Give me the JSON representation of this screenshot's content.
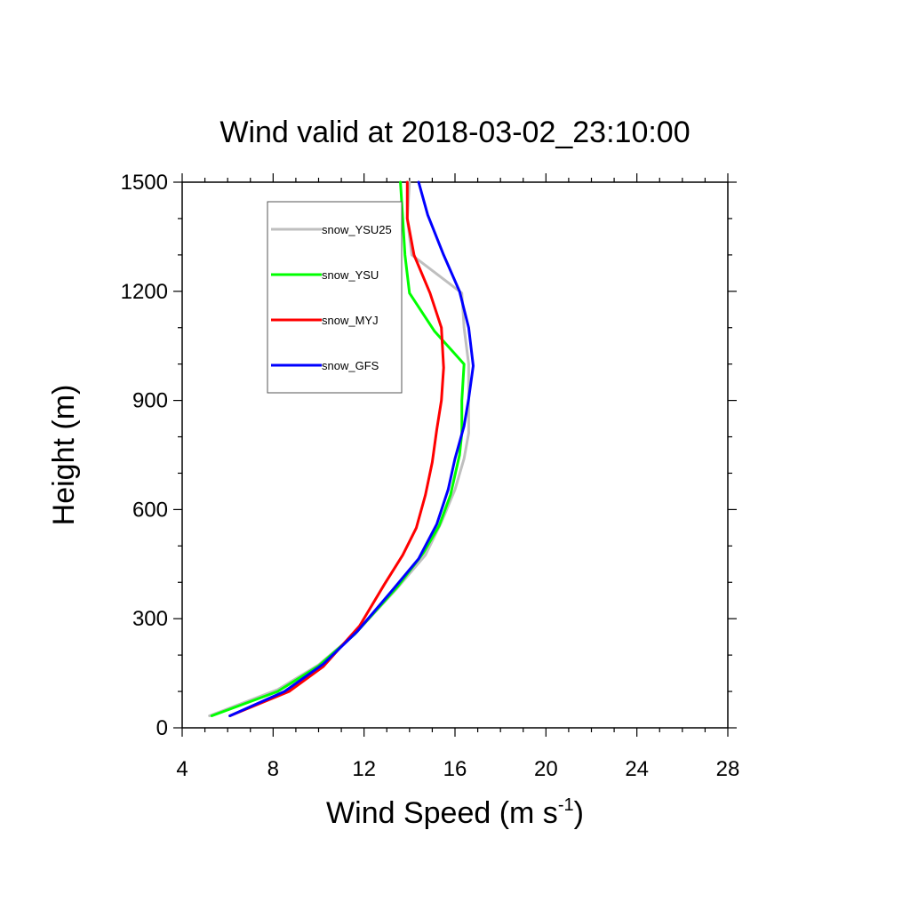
{
  "chart_data": {
    "type": "line",
    "title": "Wind valid at 2018-03-02_23:10:00",
    "xlabel": "Wind Speed (m s",
    "xlabel_superscript": "-1",
    "xlabel_suffix": ")",
    "ylabel": "Height (m)",
    "xlim": [
      4,
      28
    ],
    "ylim": [
      0,
      1500
    ],
    "x_ticks": [
      4,
      8,
      12,
      16,
      20,
      24,
      28
    ],
    "y_ticks": [
      0,
      300,
      600,
      900,
      1200,
      1500
    ],
    "grid": false,
    "legend_position": "upper-left, inside plot",
    "series": [
      {
        "name": "snow_YSU25",
        "color": "#bfbfbf",
        "points": [
          [
            5.2,
            33
          ],
          [
            8.2,
            105
          ],
          [
            10.0,
            173
          ],
          [
            11.6,
            258
          ],
          [
            13.4,
            380
          ],
          [
            14.7,
            475
          ],
          [
            15.4,
            565
          ],
          [
            16.0,
            655
          ],
          [
            16.4,
            740
          ],
          [
            16.6,
            810
          ],
          [
            16.6,
            905
          ],
          [
            16.6,
            1000
          ],
          [
            16.4,
            1100
          ],
          [
            16.3,
            1195
          ],
          [
            14.1,
            1300
          ],
          [
            13.9,
            1400
          ],
          [
            14.0,
            1500
          ]
        ]
      },
      {
        "name": "snow_YSU",
        "color": "#00ff00",
        "points": [
          [
            5.3,
            33
          ],
          [
            8.2,
            100
          ],
          [
            10.0,
            170
          ],
          [
            11.6,
            258
          ],
          [
            13.5,
            390
          ],
          [
            14.6,
            480
          ],
          [
            15.3,
            555
          ],
          [
            15.8,
            640
          ],
          [
            16.2,
            750
          ],
          [
            16.3,
            810
          ],
          [
            16.3,
            900
          ],
          [
            16.4,
            1000
          ],
          [
            15.1,
            1090
          ],
          [
            14.0,
            1195
          ],
          [
            13.8,
            1300
          ],
          [
            13.7,
            1400
          ],
          [
            13.6,
            1500
          ]
        ]
      },
      {
        "name": "snow_MYJ",
        "color": "#ff0000",
        "points": [
          [
            6.1,
            33
          ],
          [
            8.7,
            100
          ],
          [
            10.2,
            168
          ],
          [
            11.8,
            280
          ],
          [
            12.9,
            395
          ],
          [
            13.7,
            475
          ],
          [
            14.3,
            550
          ],
          [
            14.7,
            640
          ],
          [
            15.0,
            730
          ],
          [
            15.2,
            820
          ],
          [
            15.4,
            900
          ],
          [
            15.5,
            990
          ],
          [
            15.4,
            1100
          ],
          [
            14.9,
            1195
          ],
          [
            14.2,
            1300
          ],
          [
            13.9,
            1400
          ],
          [
            13.9,
            1500
          ]
        ]
      },
      {
        "name": "snow_GFS",
        "color": "#0000ff",
        "points": [
          [
            6.1,
            33
          ],
          [
            8.5,
            100
          ],
          [
            10.2,
            175
          ],
          [
            11.7,
            265
          ],
          [
            13.2,
            375
          ],
          [
            14.4,
            465
          ],
          [
            15.2,
            560
          ],
          [
            15.7,
            655
          ],
          [
            16.0,
            740
          ],
          [
            16.4,
            830
          ],
          [
            16.6,
            905
          ],
          [
            16.8,
            995
          ],
          [
            16.6,
            1100
          ],
          [
            16.2,
            1200
          ],
          [
            15.5,
            1300
          ],
          [
            14.8,
            1410
          ],
          [
            14.4,
            1500
          ]
        ]
      }
    ]
  }
}
